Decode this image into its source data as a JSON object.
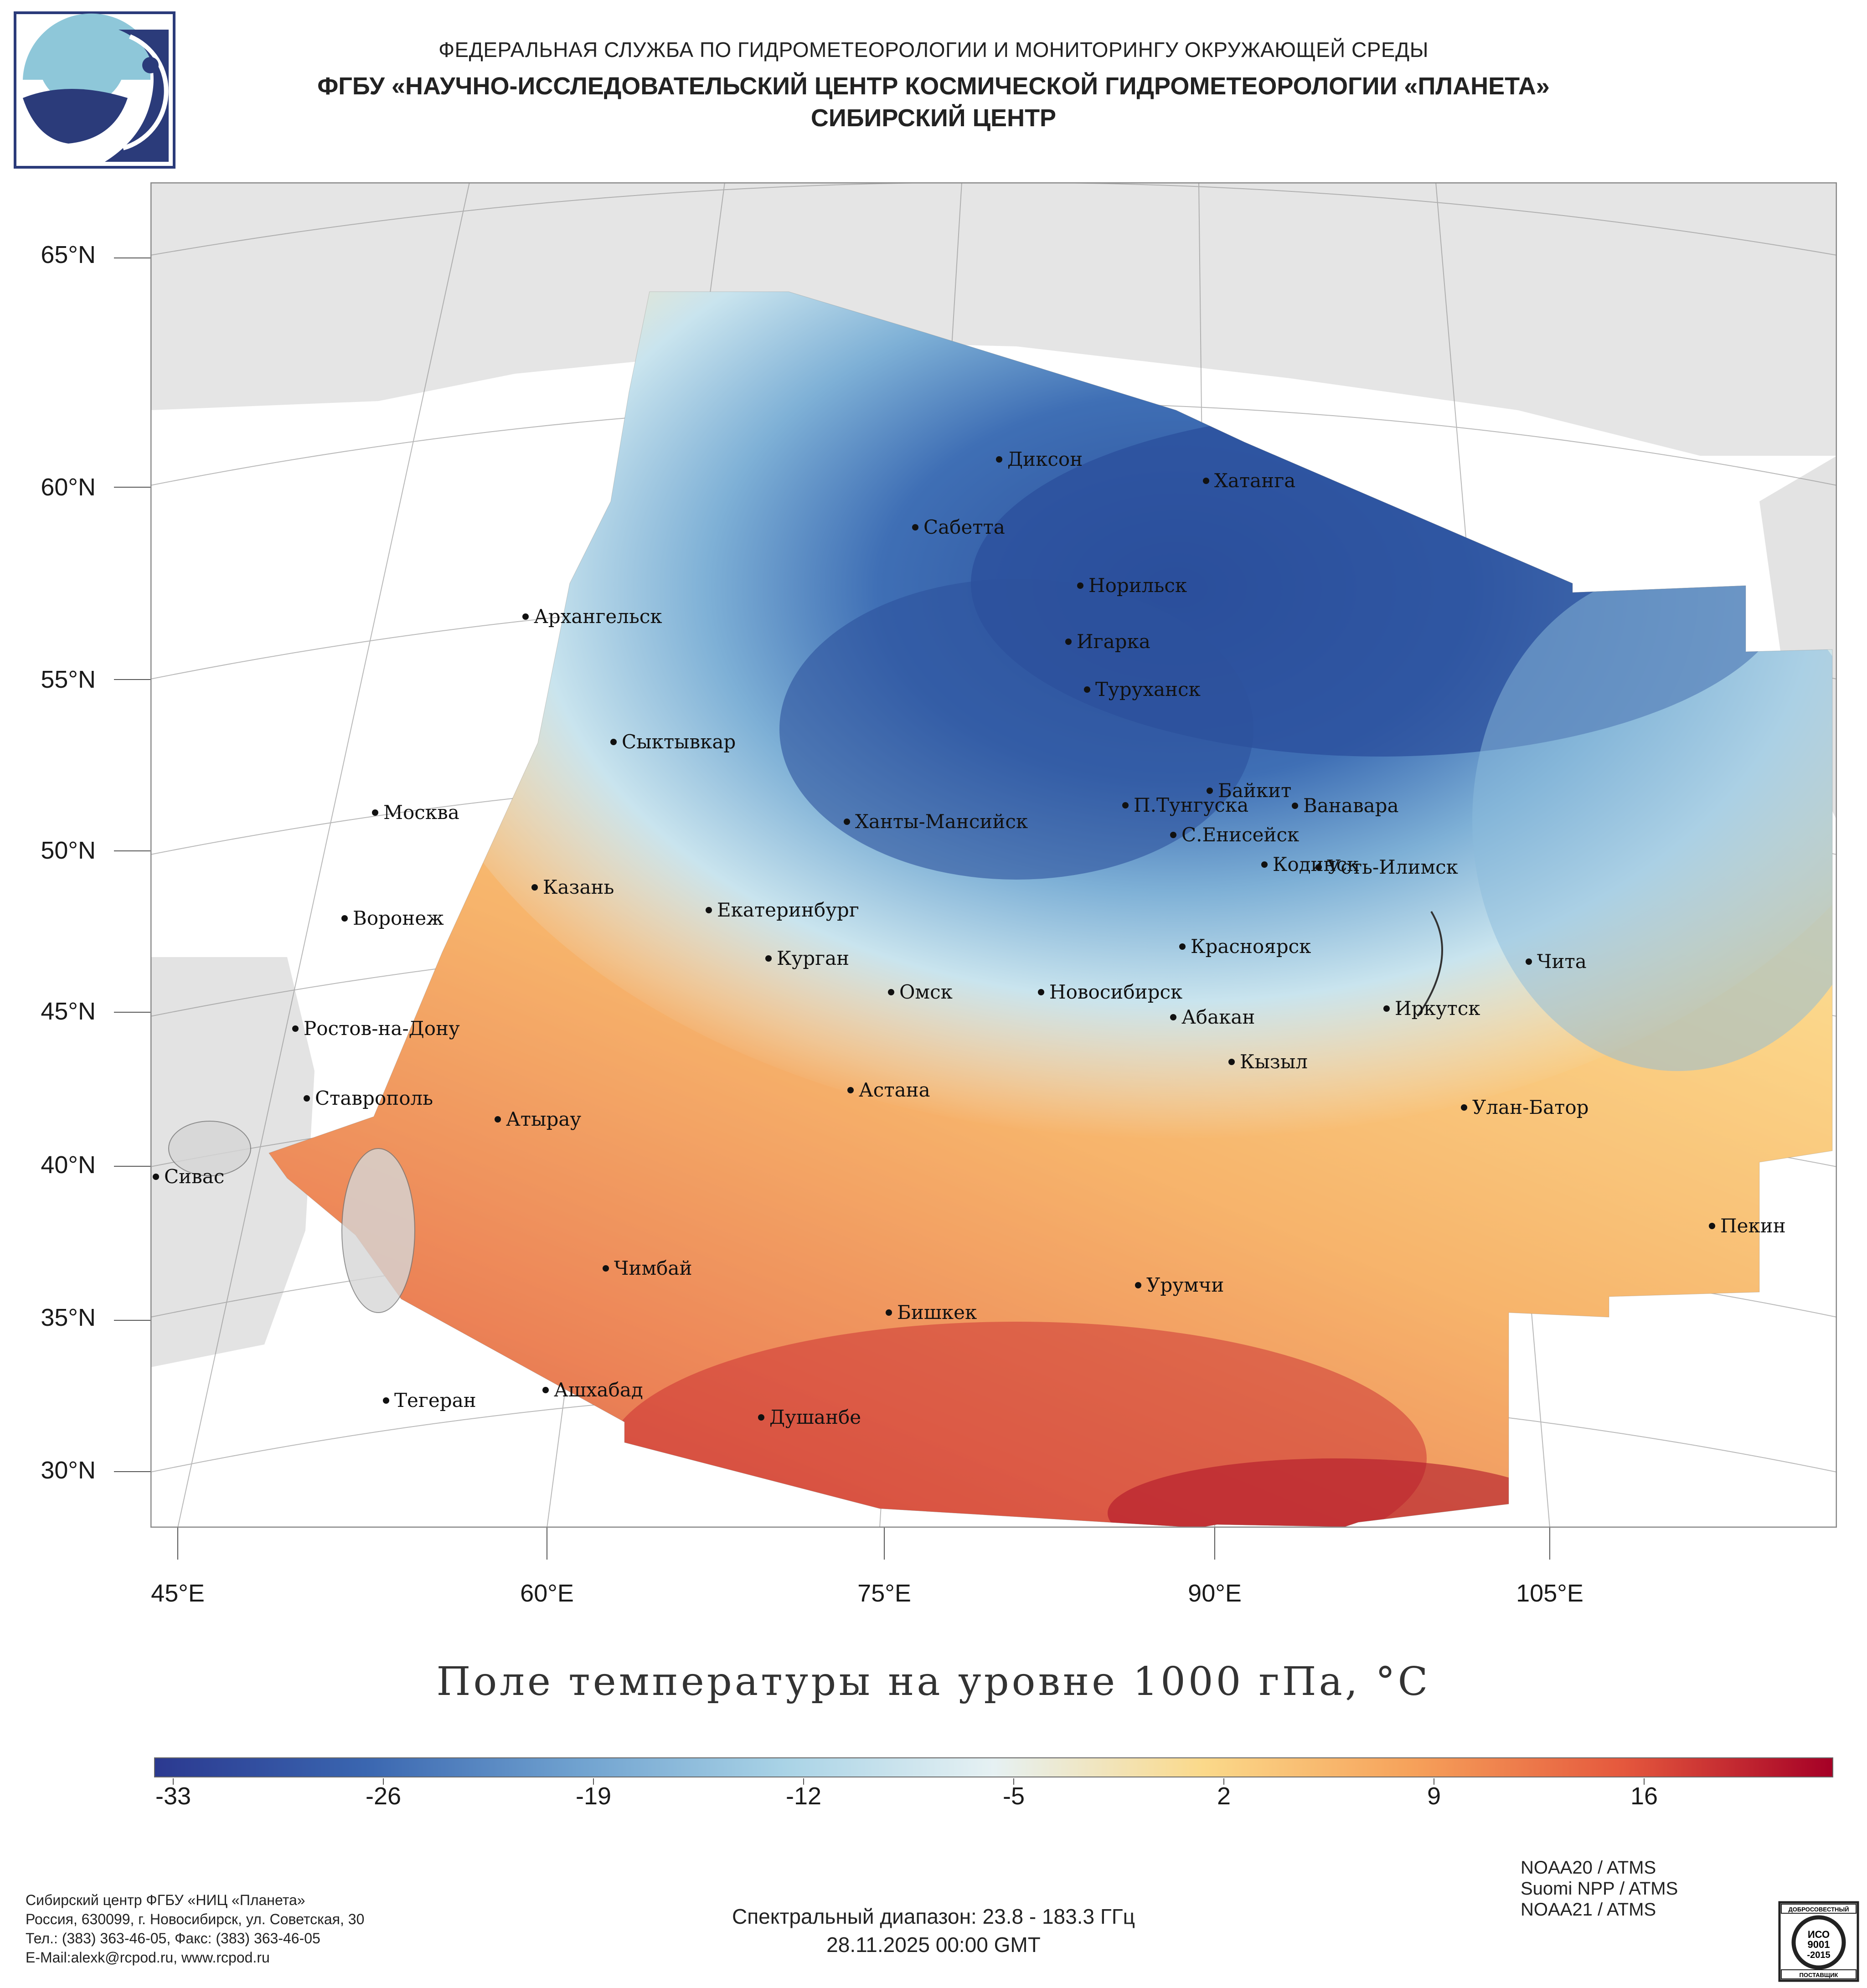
{
  "header": {
    "line1": "ФЕДЕРАЛЬНАЯ СЛУЖБА ПО ГИДРОМЕТЕОРОЛОГИИ И МОНИТОРИНГУ ОКРУЖАЮЩЕЙ СРЕДЫ",
    "line2": "ФГБУ «НАУЧНО-ИССЛЕДОВАТЕЛЬСКИЙ ЦЕНТР КОСМИЧЕСКОЙ ГИДРОМЕТЕОРОЛОГИИ «ПЛАНЕТА»",
    "line3": "СИБИРСКИЙ ЦЕНТР"
  },
  "map": {
    "lat_labels": [
      "65°N",
      "60°N",
      "55°N",
      "50°N",
      "45°N",
      "40°N",
      "35°N",
      "30°N"
    ],
    "lon_labels": [
      "45°E",
      "60°E",
      "75°E",
      "90°E",
      "105°E"
    ],
    "cities": [
      {
        "name": "Диксон"
      },
      {
        "name": "Хатанга"
      },
      {
        "name": "Сабетта"
      },
      {
        "name": "Норильск"
      },
      {
        "name": "Архангельск"
      },
      {
        "name": "Игарка"
      },
      {
        "name": "Туруханск"
      },
      {
        "name": "Сыктывкар"
      },
      {
        "name": "Байкит"
      },
      {
        "name": "Москва"
      },
      {
        "name": "Ханты-Мансийск"
      },
      {
        "name": "П.Тунгуска"
      },
      {
        "name": "Ванавара"
      },
      {
        "name": "С.Енисейск"
      },
      {
        "name": "Казань"
      },
      {
        "name": "Кодинск"
      },
      {
        "name": "Усть-Илимск"
      },
      {
        "name": "Воронеж"
      },
      {
        "name": "Екатеринбург"
      },
      {
        "name": "Красноярск"
      },
      {
        "name": "Курган"
      },
      {
        "name": "Чита"
      },
      {
        "name": "Омск"
      },
      {
        "name": "Новосибирск"
      },
      {
        "name": "Ростов-на-Дону"
      },
      {
        "name": "Иркутск"
      },
      {
        "name": "Абакан"
      },
      {
        "name": "Кызыл"
      },
      {
        "name": "Астана"
      },
      {
        "name": "Ставрополь"
      },
      {
        "name": "Улан-Батор"
      },
      {
        "name": "Атырау"
      },
      {
        "name": "Сивас"
      },
      {
        "name": "Пекин"
      },
      {
        "name": "Чимбай"
      },
      {
        "name": "Урумчи"
      },
      {
        "name": "Бишкек"
      },
      {
        "name": "Ашхабад"
      },
      {
        "name": "Тегеран"
      },
      {
        "name": "Душанбе"
      }
    ]
  },
  "colorbar": {
    "title": "Поле температуры на уровне 1000 гПа, °С",
    "tick_labels": [
      "-33",
      "-26",
      "-19",
      "-12",
      "-5",
      "2",
      "9",
      "16"
    ],
    "colors": [
      "#2b3990",
      "#3a66b0",
      "#6fa1cf",
      "#a9d3e6",
      "#e6f1f3",
      "#fbd98a",
      "#f6a15a",
      "#e5583d",
      "#a50026"
    ]
  },
  "footer": {
    "org_lines": [
      "Сибирский центр ФГБУ «НИЦ «Планета»",
      "Россия, 630099, г. Новосибирск, ул. Советская, 30",
      "Тел.: (383) 363-46-05, Факс: (383) 363-46-05",
      "E-Mail:alexk@rcpod.ru, www.rcpod.ru"
    ],
    "spectral": "Спектральный диапазон: 23.8 - 183.3 ГГц",
    "datetime": "28.11.2025 00:00 GMT",
    "satellites": [
      "NOAA20 / ATMS",
      "Suomi NPP / ATMS",
      "NOAA21 / ATMS"
    ],
    "iso_label": "ИСО 9001 -2015",
    "iso_top": "ДОБРОСОВЕСТНЫЙ",
    "iso_bottom": "ПОСТАВЩИК"
  }
}
